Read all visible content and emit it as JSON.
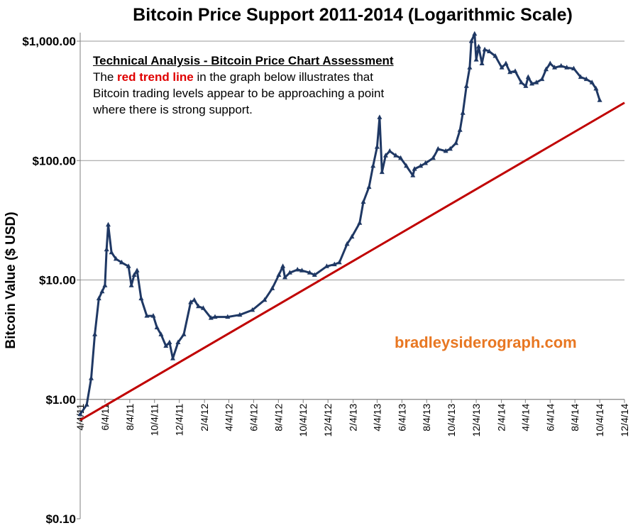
{
  "chart_data": {
    "type": "line",
    "title": "Bitcoin Price Support 2011-2014 (Logarithmic Scale)",
    "ylabel": "Bitcoin Value ($ USD)",
    "xlabel": "",
    "y_scale": "log",
    "ylim": [
      0.1,
      1000
    ],
    "y_ticks": [
      {
        "value": 1000,
        "label": "$1,000.00"
      },
      {
        "value": 100,
        "label": "$100.00"
      },
      {
        "value": 10,
        "label": "$10.00"
      },
      {
        "value": 1,
        "label": "$1.00"
      },
      {
        "value": 0.1,
        "label": "$0.10"
      }
    ],
    "xlim": [
      "2011-04-04",
      "2014-12-04"
    ],
    "x_ticks": [
      "4/4/11",
      "6/4/11",
      "8/4/11",
      "10/4/11",
      "12/4/11",
      "2/4/12",
      "4/4/12",
      "6/4/12",
      "8/4/12",
      "10/4/12",
      "12/4/12",
      "2/4/13",
      "4/4/13",
      "6/4/13",
      "8/4/13",
      "10/4/13",
      "12/4/13",
      "2/4/14",
      "4/4/14",
      "6/4/14",
      "8/4/14",
      "10/4/14",
      "12/4/14"
    ],
    "grid": "horizontal",
    "series": [
      {
        "color": "#1f3864",
        "marker": "triangle",
        "x": [
          "2011-04-04",
          "2011-04-20",
          "2011-05-01",
          "2011-05-10",
          "2011-05-20",
          "2011-05-28",
          "2011-06-04",
          "2011-06-08",
          "2011-06-12",
          "2011-06-20",
          "2011-07-01",
          "2011-07-15",
          "2011-08-01",
          "2011-08-08",
          "2011-08-15",
          "2011-08-22",
          "2011-09-01",
          "2011-09-15",
          "2011-10-01",
          "2011-10-10",
          "2011-10-20",
          "2011-11-01",
          "2011-11-10",
          "2011-11-18",
          "2011-12-01",
          "2011-12-15",
          "2012-01-01",
          "2012-01-10",
          "2012-01-20",
          "2012-02-01",
          "2012-02-20",
          "2012-03-01",
          "2012-04-01",
          "2012-05-01",
          "2012-06-01",
          "2012-07-01",
          "2012-07-20",
          "2012-08-05",
          "2012-08-15",
          "2012-08-20",
          "2012-09-01",
          "2012-09-20",
          "2012-10-01",
          "2012-10-20",
          "2012-11-01",
          "2012-12-01",
          "2012-12-20",
          "2013-01-01",
          "2013-01-20",
          "2013-02-01",
          "2013-02-20",
          "2013-03-01",
          "2013-03-15",
          "2013-03-25",
          "2013-04-04",
          "2013-04-10",
          "2013-04-16",
          "2013-04-25",
          "2013-05-05",
          "2013-05-20",
          "2013-06-01",
          "2013-06-15",
          "2013-07-01",
          "2013-07-05",
          "2013-07-20",
          "2013-08-01",
          "2013-08-20",
          "2013-09-01",
          "2013-09-20",
          "2013-10-01",
          "2013-10-15",
          "2013-10-25",
          "2013-11-01",
          "2013-11-10",
          "2013-11-18",
          "2013-11-22",
          "2013-11-30",
          "2013-12-04",
          "2013-12-10",
          "2013-12-18",
          "2013-12-25",
          "2014-01-05",
          "2014-01-20",
          "2014-02-05",
          "2014-02-15",
          "2014-02-25",
          "2014-03-10",
          "2014-03-25",
          "2014-04-05",
          "2014-04-11",
          "2014-04-20",
          "2014-05-01",
          "2014-05-15",
          "2014-05-25",
          "2014-06-04",
          "2014-06-15",
          "2014-07-01",
          "2014-07-15",
          "2014-08-01",
          "2014-08-18",
          "2014-09-01",
          "2014-09-15",
          "2014-09-25",
          "2014-10-04"
        ],
        "y": [
          0.75,
          0.9,
          1.5,
          3.5,
          7,
          8,
          9,
          18,
          29,
          17,
          15,
          14,
          13,
          9,
          11,
          12,
          7,
          5,
          5,
          4,
          3.5,
          2.8,
          3,
          2.2,
          3,
          3.5,
          6.5,
          6.8,
          6,
          5.8,
          4.8,
          4.9,
          4.9,
          5.1,
          5.6,
          6.8,
          8.5,
          11,
          13,
          10.5,
          11.5,
          12.2,
          12,
          11.5,
          11,
          13,
          13.5,
          14,
          20,
          23,
          30,
          45,
          60,
          90,
          130,
          230,
          80,
          110,
          120,
          110,
          105,
          90,
          75,
          85,
          90,
          95,
          105,
          125,
          120,
          125,
          140,
          180,
          250,
          420,
          600,
          1000,
          1150,
          700,
          900,
          650,
          850,
          820,
          750,
          600,
          650,
          550,
          560,
          450,
          420,
          500,
          440,
          450,
          480,
          580,
          650,
          600,
          620,
          600,
          590,
          500,
          480,
          450,
          400,
          320
        ]
      },
      {
        "color": "#c00000",
        "x": [
          "2011-04-04",
          "2014-12-04"
        ],
        "y": [
          0.67,
          305
        ]
      }
    ]
  },
  "annotation": {
    "heading": "Technical Analysis - Bitcoin Price Chart Assessment",
    "line1_pre": "The ",
    "line1_red": "red trend line",
    "line1_post": " in the graph below illustrates that",
    "line2": "Bitcoin trading levels appear to be approaching a point",
    "line3": "where there is strong support."
  },
  "watermark": "bradleysiderograph.com"
}
